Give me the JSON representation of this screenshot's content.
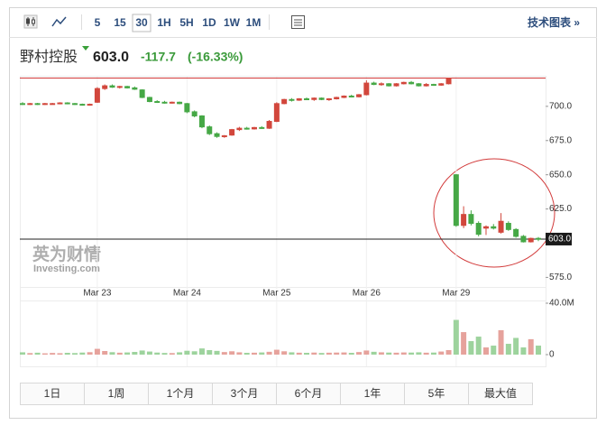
{
  "toolbar": {
    "intervals": [
      "5",
      "15",
      "30",
      "1H",
      "5H",
      "1D",
      "1W",
      "1M"
    ],
    "selected_interval": "30",
    "tech_link": "技术图表 »"
  },
  "header": {
    "name": "野村控股",
    "price": "603.0",
    "change": "-117.7",
    "change_pct": "(-16.33%)"
  },
  "watermark": {
    "cn": "英为财情",
    "en": "Investing.com"
  },
  "ranges": [
    "1日",
    "1周",
    "1个月",
    "3个月",
    "6个月",
    "1年",
    "5年",
    "最大值"
  ],
  "chart_data": {
    "type": "candlestick",
    "categories": [
      null,
      null,
      null,
      null,
      null,
      null,
      null,
      null,
      null,
      null,
      "Mar 23",
      null,
      null,
      null,
      null,
      null,
      null,
      null,
      null,
      null,
      null,
      null,
      "Mar 24",
      null,
      null,
      null,
      null,
      null,
      null,
      null,
      null,
      null,
      null,
      null,
      "Mar 25",
      null,
      null,
      null,
      null,
      null,
      null,
      null,
      null,
      null,
      null,
      null,
      "Mar 26",
      null,
      null,
      null,
      null,
      null,
      null,
      null,
      null,
      null,
      null,
      null,
      "Mar 29",
      null,
      null,
      null,
      null,
      null,
      null,
      null,
      null,
      null,
      null,
      null
    ],
    "open": [
      702,
      701.5,
      702,
      701.5,
      702,
      702,
      702.5,
      702,
      701.5,
      701,
      703,
      713,
      715,
      714,
      714.5,
      713.5,
      712,
      706.5,
      703.5,
      703,
      702.5,
      703,
      702,
      696,
      693,
      685,
      680,
      678,
      679,
      683,
      684,
      683.5,
      684.5,
      684,
      689,
      702,
      705,
      704.5,
      705.5,
      705,
      706,
      705,
      705.5,
      706.5,
      707.5,
      707,
      708.5,
      717,
      716,
      716.5,
      715,
      716.5,
      717.5,
      716.5,
      715,
      716,
      715.5,
      716.5,
      650,
      613,
      621,
      614.5,
      611,
      612,
      608,
      614.5,
      610,
      605,
      601,
      603.5
    ],
    "high": [
      703,
      702.5,
      702.5,
      702.5,
      702.5,
      703,
      703,
      702.5,
      702,
      702,
      714,
      716,
      716,
      715,
      715,
      714.5,
      712.5,
      707,
      704.5,
      704,
      703.5,
      703.5,
      702.5,
      697,
      693.5,
      686,
      681,
      679,
      683.5,
      685,
      685,
      685,
      685.5,
      690,
      703,
      705.5,
      706,
      706,
      706.5,
      706.5,
      706.5,
      706,
      707,
      708,
      708.5,
      709,
      719,
      718,
      717.5,
      717,
      717,
      718,
      718.5,
      717,
      717,
      716.5,
      717,
      721,
      650.5,
      627,
      624,
      616,
      613,
      614,
      622,
      616,
      611,
      606,
      604,
      604.5
    ],
    "low": [
      701,
      701,
      701,
      701,
      701.5,
      701.5,
      701.5,
      701,
      700.5,
      700.5,
      702.5,
      712,
      713.5,
      713,
      713,
      712,
      706,
      703,
      702.5,
      702,
      702,
      701.5,
      695,
      692,
      684,
      679,
      677,
      677,
      678.5,
      682,
      683,
      683,
      683.5,
      683.5,
      688.5,
      701.5,
      703.5,
      704,
      704.5,
      704,
      704.5,
      704,
      705,
      706,
      706.5,
      706.5,
      708,
      715.5,
      715,
      714.5,
      714.5,
      716,
      716,
      714.5,
      714.5,
      715,
      715,
      716,
      612,
      611,
      613,
      605,
      606,
      610,
      607,
      609,
      604,
      600.5,
      600.5,
      601.5
    ],
    "close": [
      701.5,
      702,
      701.5,
      702,
      702,
      702.5,
      702,
      701.5,
      701,
      701.5,
      713,
      715,
      714,
      714.5,
      713.5,
      712.5,
      706.5,
      703.5,
      703,
      702.5,
      703,
      702,
      696,
      693,
      685,
      680,
      678,
      678.5,
      683,
      684,
      683.5,
      684.5,
      684,
      689,
      702,
      705,
      704.5,
      705.5,
      705,
      706,
      705,
      705.5,
      706.5,
      707.5,
      707,
      708.5,
      717,
      716,
      716.5,
      715,
      716.5,
      717.5,
      716.5,
      715,
      716,
      715.5,
      716.5,
      720.5,
      613,
      621,
      614.5,
      606.5,
      612,
      611,
      616,
      610,
      605,
      601,
      603.5,
      603
    ],
    "volume": [
      1800000,
      1200000,
      1500000,
      1000000,
      1300000,
      1100000,
      1400000,
      1200000,
      1600000,
      1900000,
      4500000,
      2800000,
      1900000,
      1500000,
      1700000,
      2100000,
      3200000,
      2400000,
      1600000,
      1300000,
      1200000,
      1800000,
      3000000,
      2600000,
      4800000,
      3500000,
      2900000,
      2000000,
      2600000,
      1800000,
      1400000,
      1500000,
      1700000,
      2200000,
      3800000,
      2600000,
      1800000,
      1500000,
      1400000,
      1600000,
      1300000,
      1500000,
      1600000,
      1700000,
      1400000,
      2000000,
      3200000,
      2200000,
      1800000,
      1600000,
      1500000,
      1700000,
      1600000,
      1800000,
      1500000,
      1600000,
      2400000,
      3500000,
      27000000,
      17500000,
      10500000,
      14000000,
      5600000,
      7000000,
      19000000,
      8400000,
      13000000,
      5600000,
      12000000,
      7000000
    ],
    "ylim": [
      570,
      721
    ],
    "yticks": [
      {
        "value": 575,
        "label": "575.0"
      },
      {
        "value": 625,
        "label": "625.0"
      },
      {
        "value": 650,
        "label": "650.0"
      },
      {
        "value": 675,
        "label": "675.0"
      },
      {
        "value": 700,
        "label": "700.0"
      }
    ],
    "vlim": [
      0,
      40000000
    ],
    "vticks": [
      {
        "value": 0,
        "label": "0"
      },
      {
        "value": 40000000,
        "label": "40.0M"
      }
    ],
    "last_price": {
      "value": 603,
      "label": "603.0"
    },
    "prev_close": 720.7,
    "up_color": "#d2473c",
    "down_color": "#46a846",
    "volume_up_color": "#e6a29c",
    "volume_down_color": "#9dd39d"
  }
}
